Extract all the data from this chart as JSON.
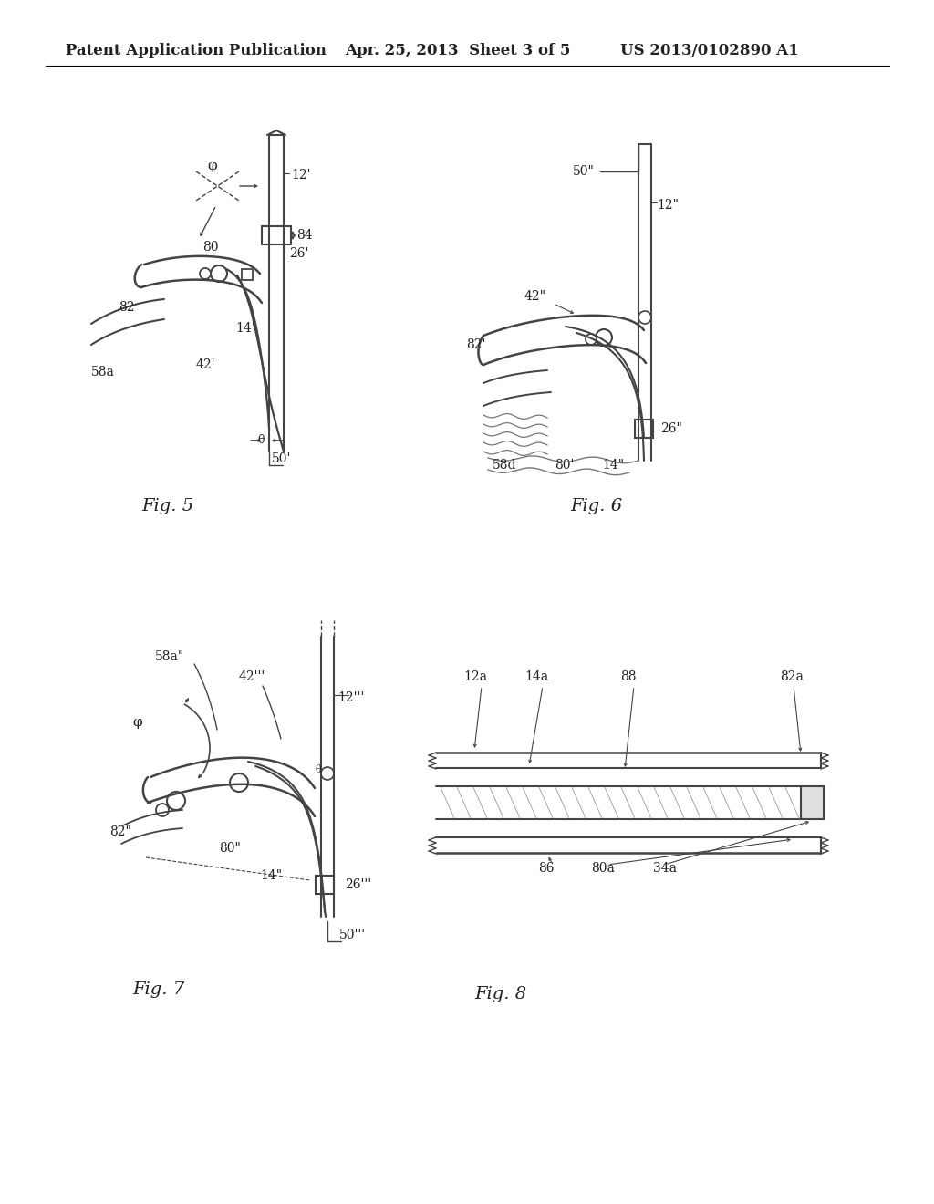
{
  "page_background": "#ffffff",
  "header_left": "Patent Application Publication",
  "header_center": "Apr. 25, 2013  Sheet 3 of 5",
  "header_right": "US 2013/0102890 A1",
  "line_color": "#444444",
  "text_color": "#222222",
  "sketch_color": "#444444",
  "fig5_label": "Fig. 5",
  "fig6_label": "Fig. 6",
  "fig7_label": "Fig. 7",
  "fig8_label": "Fig. 8"
}
